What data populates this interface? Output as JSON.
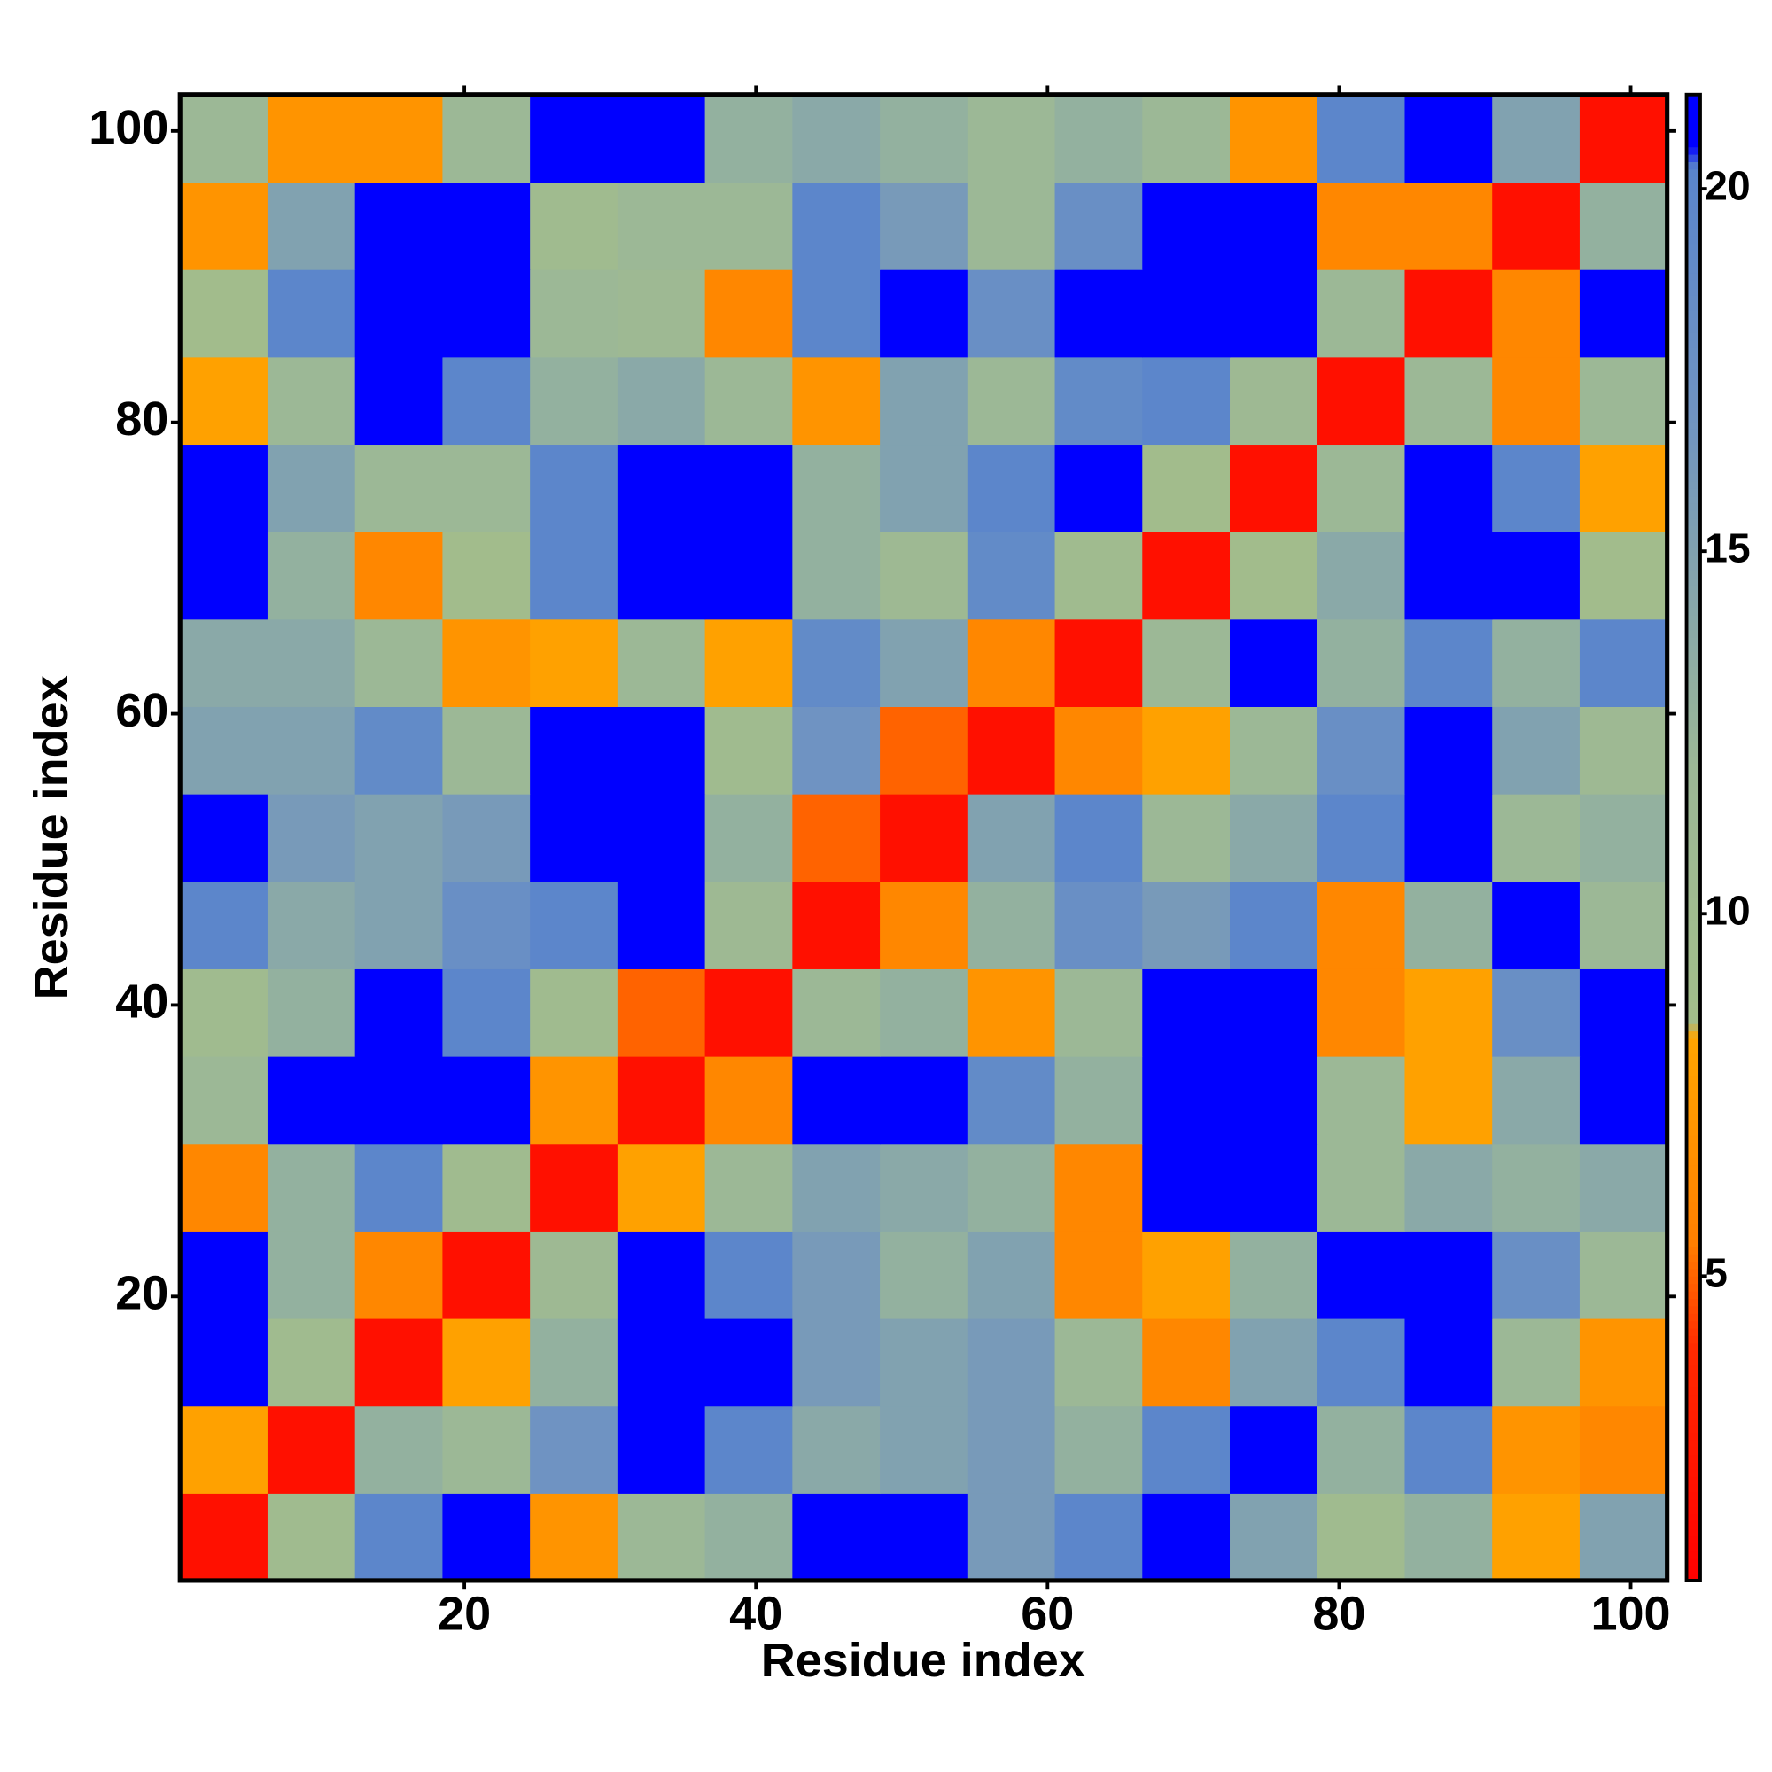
{
  "chart_data": {
    "type": "heatmap",
    "xlabel": "Residue index",
    "ylabel": "Residue index",
    "x": [
      3.5,
      9.5,
      15.5,
      21.5,
      27.5,
      33.5,
      39.5,
      45.5,
      51.5,
      57.5,
      63.5,
      69.5,
      75.5,
      81.5,
      87.5,
      93.5,
      99.5
    ],
    "y": [
      3.5,
      9.5,
      15.5,
      21.5,
      27.5,
      33.5,
      39.5,
      45.5,
      51.5,
      57.5,
      63.5,
      69.5,
      75.5,
      81.5,
      87.5,
      93.5,
      99.5
    ],
    "z": [
      [
        2,
        10,
        20,
        21,
        7,
        12,
        13,
        21,
        21,
        16,
        20,
        21,
        15,
        10,
        13,
        8,
        15
      ],
      [
        8,
        2,
        13,
        12,
        17,
        21,
        20,
        14,
        15,
        16,
        13,
        20,
        21,
        13,
        20,
        7,
        6
      ],
      [
        21,
        10,
        2,
        8,
        13,
        21,
        21,
        16,
        15,
        16,
        12,
        6,
        15,
        20,
        21,
        12,
        7
      ],
      [
        21,
        13,
        6,
        2,
        11,
        21,
        20,
        16,
        13,
        15,
        6,
        8,
        13,
        21,
        21,
        18,
        12
      ],
      [
        6,
        13,
        20,
        10,
        2,
        8,
        12,
        15,
        14,
        13,
        6,
        21,
        21,
        12,
        14,
        13,
        14
      ],
      [
        12,
        21,
        21,
        21,
        7,
        2,
        6,
        21,
        21,
        19,
        13,
        21,
        21,
        12,
        8,
        14,
        21
      ],
      [
        10,
        13,
        21,
        20,
        10,
        5,
        2,
        12,
        13,
        7,
        12,
        21,
        21,
        6,
        8,
        18,
        21
      ],
      [
        20,
        14,
        15,
        18,
        20,
        21,
        11,
        2,
        6,
        13,
        18,
        16,
        20,
        6,
        13,
        21,
        12
      ],
      [
        21,
        16,
        15,
        16,
        21,
        21,
        13,
        5,
        2,
        15,
        20,
        12,
        14,
        20,
        21,
        12,
        13
      ],
      [
        15,
        15,
        19,
        12,
        21,
        21,
        10,
        17,
        5,
        2,
        6,
        8,
        12,
        18,
        21,
        15,
        11
      ],
      [
        14,
        14,
        12,
        7,
        8,
        12,
        8,
        19,
        15,
        6,
        2,
        12,
        21,
        13,
        20,
        13,
        20
      ],
      [
        21,
        13,
        6,
        9,
        20,
        21,
        21,
        13,
        11,
        19,
        10,
        2,
        9,
        14,
        21,
        21,
        9
      ],
      [
        21,
        15,
        12,
        12,
        20,
        21,
        21,
        13,
        15,
        20,
        21,
        9,
        2,
        12,
        21,
        20,
        8
      ],
      [
        8,
        12,
        21,
        20,
        13,
        14,
        12,
        7,
        15,
        12,
        19,
        20,
        11,
        2,
        12,
        6,
        12
      ],
      [
        9,
        20,
        21,
        21,
        12,
        11,
        6,
        20,
        21,
        18,
        21,
        21,
        21,
        12,
        2,
        6,
        21
      ],
      [
        7,
        15,
        21,
        21,
        10,
        12,
        12,
        20,
        16,
        12,
        18,
        21,
        21,
        6,
        6,
        2,
        13
      ],
      [
        12,
        7,
        7,
        12,
        21,
        21,
        13,
        14,
        13,
        12,
        13,
        12,
        7,
        20,
        21,
        15,
        2
      ]
    ],
    "xlim": [
      0.5,
      102.5
    ],
    "ylim": [
      0.5,
      102.5
    ],
    "xticks": [
      20,
      40,
      60,
      80,
      100
    ],
    "yticks": [
      20,
      40,
      60,
      80,
      100
    ],
    "zlim": [
      0.8,
      21.3
    ],
    "zticks": [
      5,
      10,
      15,
      20
    ],
    "colorscale": [
      [
        0.8,
        "#ff0000"
      ],
      [
        4,
        "#ff2a00"
      ],
      [
        5.5,
        "#ff8000"
      ],
      [
        8.3,
        "#ffa500"
      ],
      [
        8.5,
        "#a3bd8a"
      ],
      [
        12,
        "#9cb896"
      ],
      [
        17,
        "#6f93c2"
      ],
      [
        20.3,
        "#5a85cc"
      ],
      [
        20.6,
        "#0000ff"
      ]
    ]
  }
}
